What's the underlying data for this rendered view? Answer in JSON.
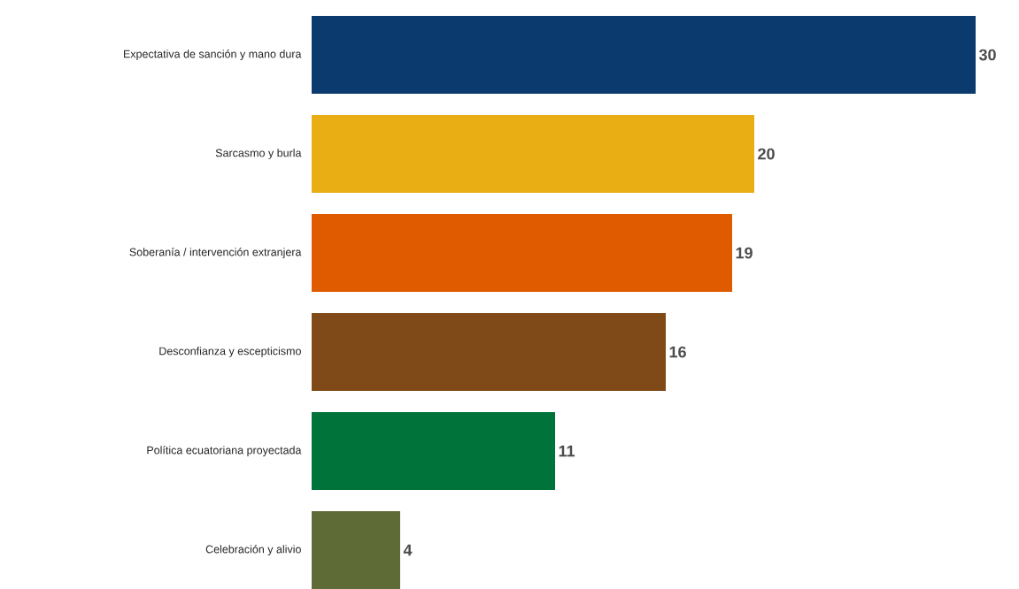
{
  "chart_data": {
    "type": "bar",
    "orientation": "horizontal",
    "categories": [
      "Expectativa de sanción y mano dura",
      "Sarcasmo y burla",
      "Soberanía / intervención extranjera",
      "Desconfianza y escepticismo",
      "Política ecuatoriana proyectada",
      "Celebración y alivio"
    ],
    "values": [
      30,
      20,
      19,
      16,
      11,
      4
    ],
    "colors": [
      "#0a3a6e",
      "#e8ae14",
      "#e05a00",
      "#7f4a18",
      "#00733a",
      "#5f6b36"
    ],
    "data_labels": true
  }
}
